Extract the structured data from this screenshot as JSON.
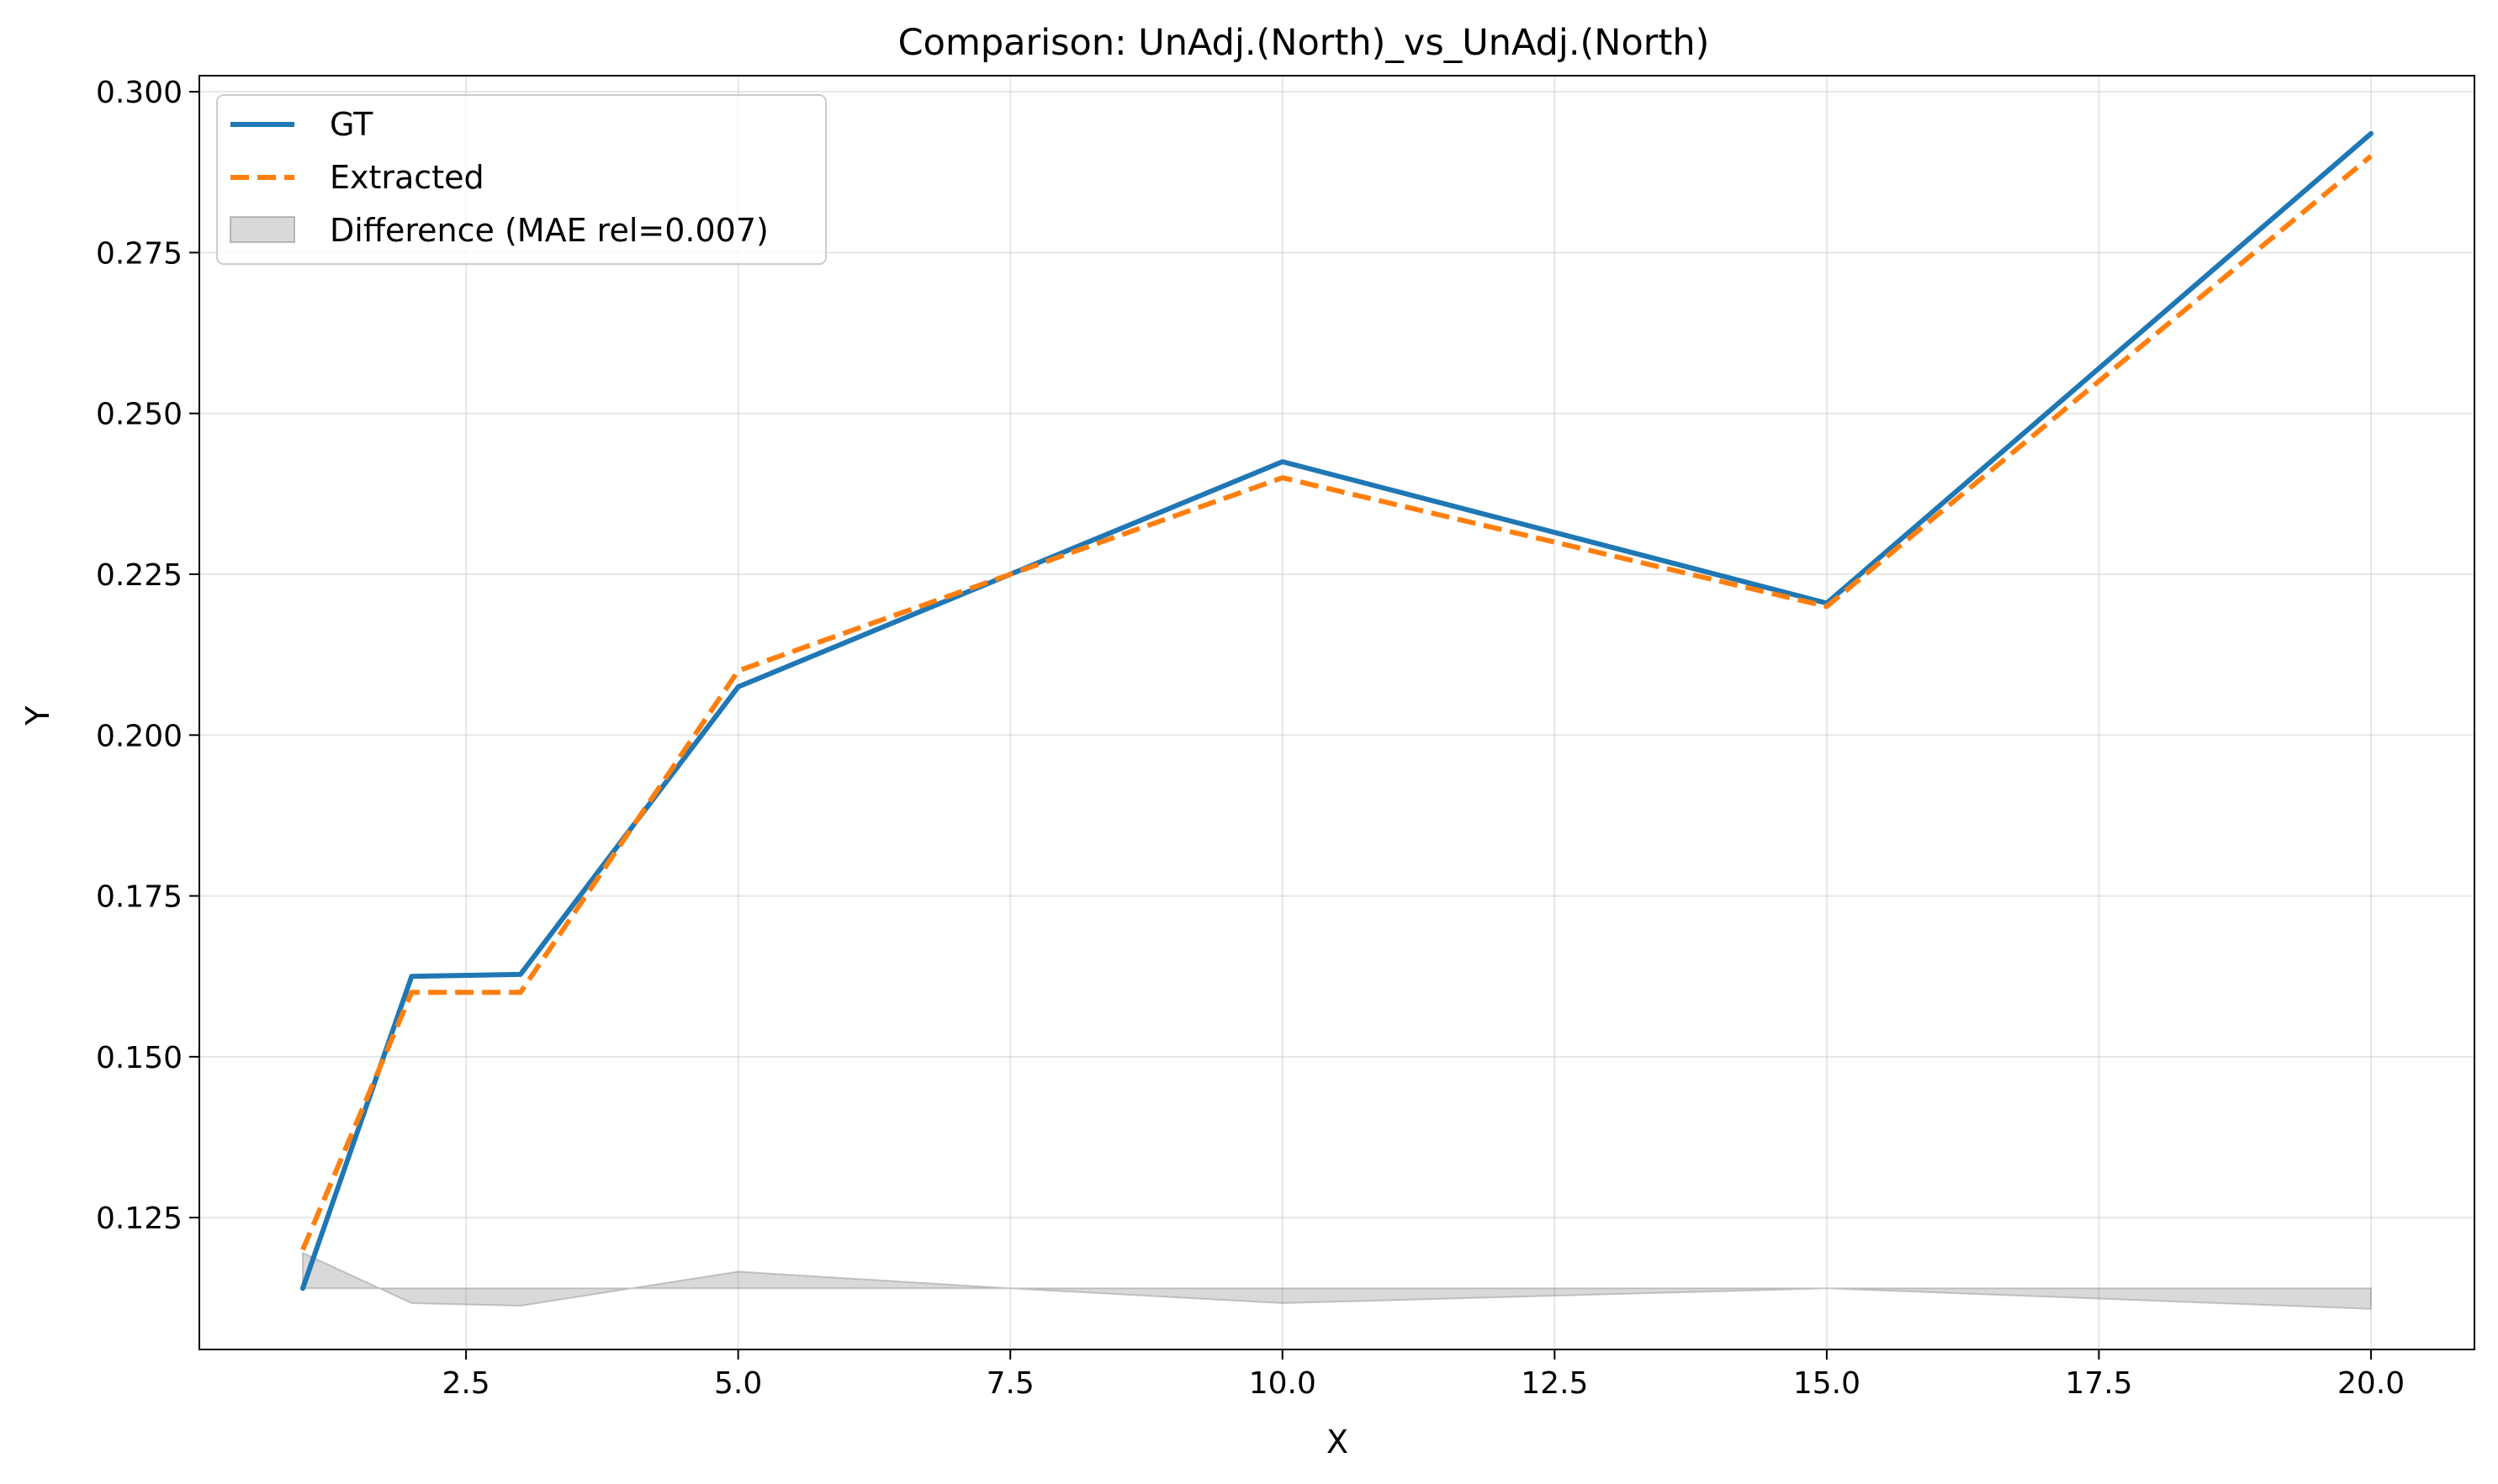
{
  "chart_data": {
    "type": "line",
    "title": "Comparison: UnAdj.(North)_vs_UnAdj.(North)",
    "xlabel": "X",
    "ylabel": "Y",
    "xlim": [
      0.05,
      20.95
    ],
    "ylim": [
      0.1045,
      0.3025
    ],
    "x_ticks": [
      2.5,
      5.0,
      7.5,
      10.0,
      12.5,
      15.0,
      17.5,
      20.0
    ],
    "x_tick_labels": [
      "2.5",
      "5.0",
      "7.5",
      "10.0",
      "12.5",
      "15.0",
      "17.5",
      "20.0"
    ],
    "y_ticks": [
      0.125,
      0.15,
      0.175,
      0.2,
      0.225,
      0.25,
      0.275,
      0.3
    ],
    "y_tick_labels": [
      "0.125",
      "0.150",
      "0.175",
      "0.200",
      "0.225",
      "0.250",
      "0.275",
      "0.300"
    ],
    "grid": true,
    "legend_position": "top-left",
    "series": [
      {
        "name": "GT",
        "style": "solid",
        "color": "#1f77b4",
        "x": [
          1,
          2,
          3,
          5,
          10,
          15,
          20
        ],
        "values": [
          0.114,
          0.1625,
          0.1628,
          0.2075,
          0.2425,
          0.2205,
          0.2935
        ]
      },
      {
        "name": "Extracted",
        "style": "dashed",
        "color": "#ff7f0e",
        "x": [
          1,
          2,
          3,
          5,
          10,
          15,
          20
        ],
        "values": [
          0.12,
          0.16,
          0.16,
          0.21,
          0.24,
          0.22,
          0.29
        ]
      }
    ],
    "difference_band": {
      "name": "Difference (MAE rel=0.007)",
      "color": "#808080",
      "baseline": 0.114,
      "x": [
        1,
        2,
        3,
        5,
        7.5,
        10,
        15,
        20
      ],
      "values": [
        0.1195,
        0.1117,
        0.1113,
        0.1166,
        0.114,
        0.1117,
        0.114,
        0.1108
      ]
    }
  }
}
